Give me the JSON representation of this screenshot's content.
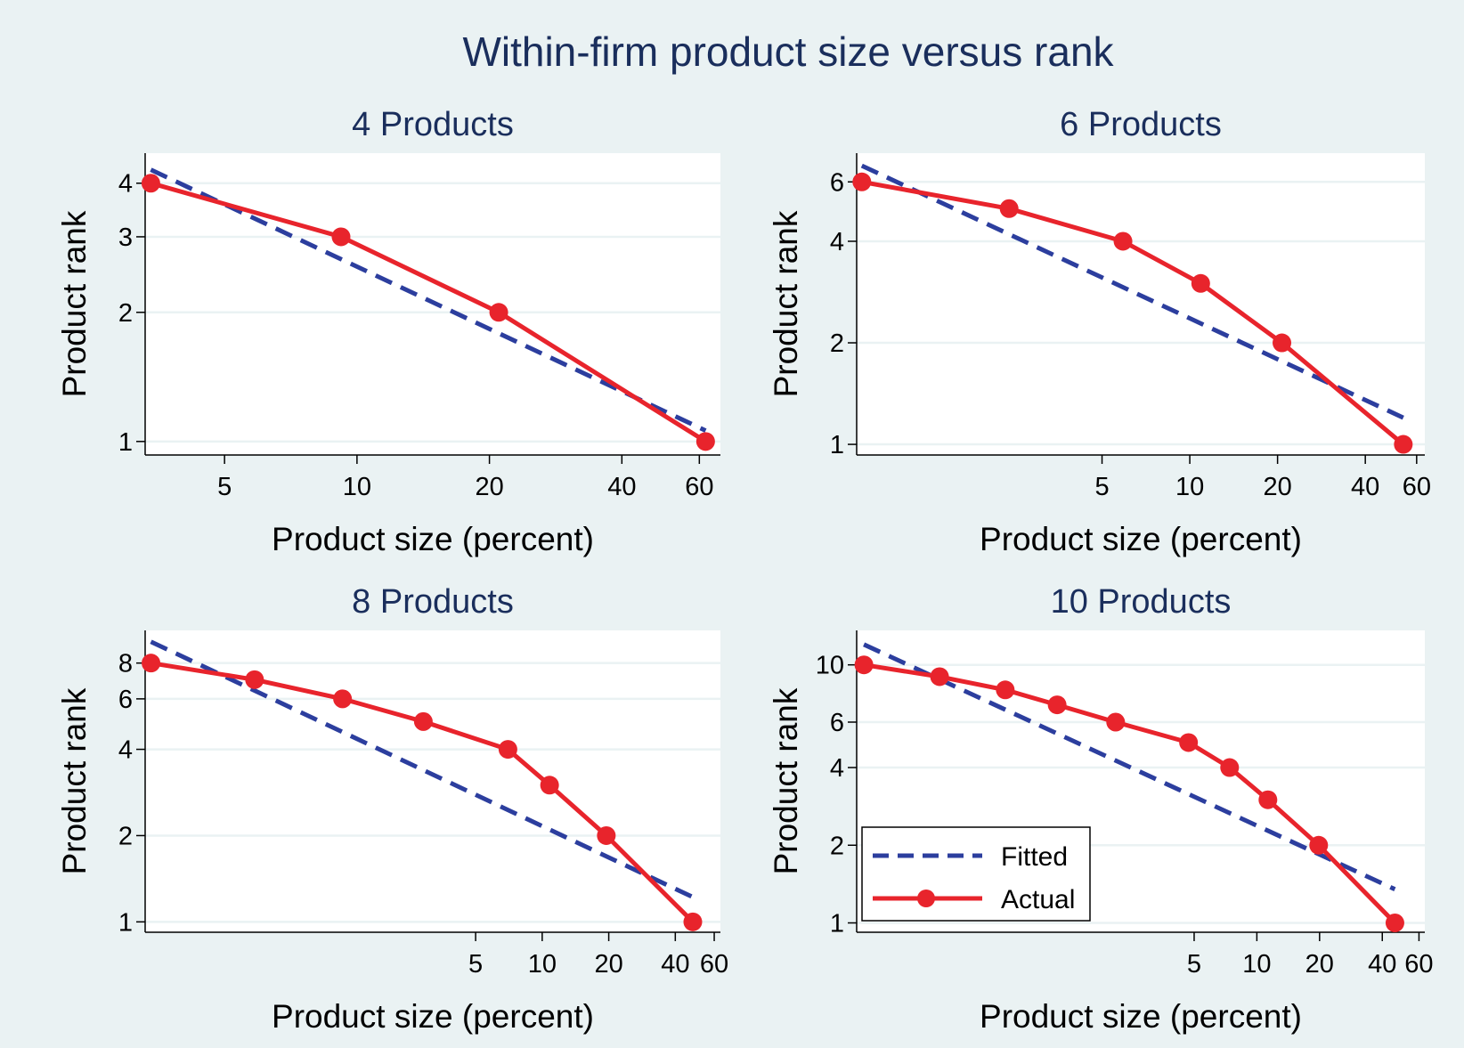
{
  "figure": {
    "title": "Within-firm product size versus rank",
    "background": "#eaf2f3",
    "plot_background": "#ffffff",
    "title_color": "#1a2e5c",
    "fitted_color": "#2c3e9e",
    "actual_color": "#e8242c"
  },
  "legend": {
    "fitted_label": "Fitted",
    "actual_label": "Actual"
  },
  "chart_data": [
    {
      "type": "line",
      "title": "4 Products",
      "xlabel": "Product size (percent)",
      "ylabel": "Product rank",
      "x_scale": "log",
      "y_scale": "log",
      "xlim": [
        3.3,
        67
      ],
      "ylim": [
        0.93,
        4.7
      ],
      "xticks": [
        5,
        10,
        20,
        40,
        60
      ],
      "yticks": [
        1,
        2,
        3,
        4
      ],
      "grid": true,
      "series": [
        {
          "name": "Actual",
          "x": [
            3.4,
            9.2,
            21,
            62
          ],
          "y": [
            4,
            3,
            2,
            1
          ]
        },
        {
          "name": "Fitted",
          "x": [
            3.4,
            62
          ],
          "y": [
            4.3,
            1.06
          ]
        }
      ]
    },
    {
      "type": "line",
      "title": "6 Products",
      "xlabel": "Product size (percent)",
      "ylabel": "Product rank",
      "x_scale": "log",
      "y_scale": "log",
      "xlim": [
        0.72,
        64
      ],
      "ylim": [
        0.93,
        7.3
      ],
      "xticks": [
        5,
        10,
        20,
        40,
        60
      ],
      "yticks": [
        1,
        2,
        4,
        6
      ],
      "grid": true,
      "series": [
        {
          "name": "Actual",
          "x": [
            0.75,
            2.4,
            5.9,
            10.9,
            20.7,
            54
          ],
          "y": [
            6,
            5,
            4,
            3,
            2,
            1
          ]
        },
        {
          "name": "Fitted",
          "x": [
            0.75,
            54
          ],
          "y": [
            6.7,
            1.2
          ]
        }
      ]
    },
    {
      "type": "line",
      "title": "8 Products",
      "xlabel": "Product size (percent)",
      "ylabel": "Product rank",
      "x_scale": "log",
      "y_scale": "log",
      "xlim": [
        0.16,
        64
      ],
      "ylim": [
        0.92,
        10.4
      ],
      "xticks": [
        5,
        10,
        20,
        40,
        60
      ],
      "yticks": [
        1,
        2,
        4,
        6,
        8
      ],
      "grid": true,
      "series": [
        {
          "name": "Actual",
          "x": [
            0.17,
            0.5,
            1.25,
            2.9,
            7.0,
            10.8,
            19.5,
            48
          ],
          "y": [
            8,
            7,
            6,
            5,
            4,
            3,
            2,
            1
          ]
        },
        {
          "name": "Fitted",
          "x": [
            0.17,
            48
          ],
          "y": [
            9.5,
            1.22
          ]
        }
      ]
    },
    {
      "type": "line",
      "title": "10 Products",
      "xlabel": "Product size (percent)",
      "ylabel": "Product rank",
      "x_scale": "log",
      "y_scale": "log",
      "xlim": [
        0.12,
        64
      ],
      "ylim": [
        0.92,
        13.6
      ],
      "xticks": [
        5,
        10,
        20,
        40,
        60
      ],
      "yticks": [
        1,
        2,
        4,
        6,
        10
      ],
      "grid": true,
      "series": [
        {
          "name": "Actual",
          "x": [
            0.13,
            0.3,
            0.62,
            1.1,
            2.1,
            4.7,
            7.4,
            11.3,
            19.8,
            46
          ],
          "y": [
            10,
            9,
            8,
            7,
            6,
            5,
            4,
            3,
            2,
            1
          ]
        },
        {
          "name": "Fitted",
          "x": [
            0.13,
            46
          ],
          "y": [
            12,
            1.35
          ]
        }
      ]
    }
  ]
}
